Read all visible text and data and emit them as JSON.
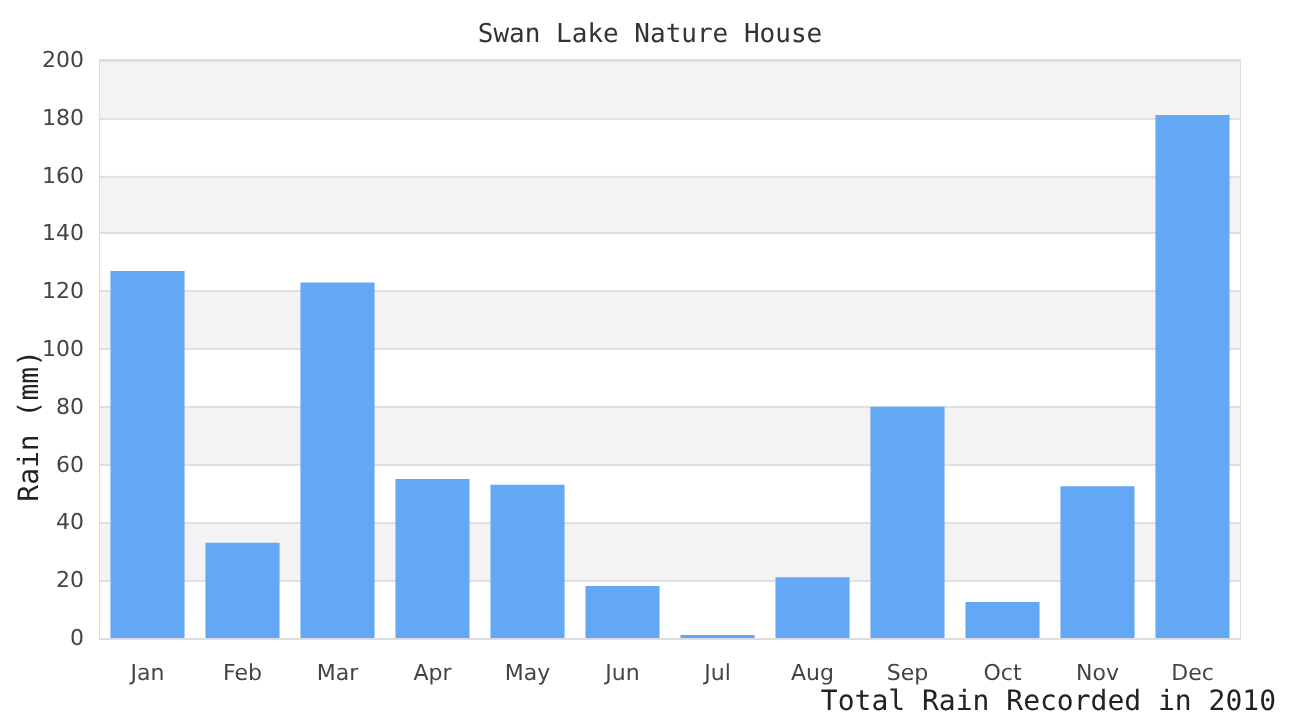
{
  "chart_data": {
    "type": "bar",
    "title": "Swan Lake Nature House",
    "xlabel": "Total Rain Recorded in 2010",
    "ylabel": "Rain (mm)",
    "categories": [
      "Jan",
      "Feb",
      "Mar",
      "Apr",
      "May",
      "Jun",
      "Jul",
      "Aug",
      "Sep",
      "Oct",
      "Nov",
      "Dec"
    ],
    "values": [
      127,
      33,
      123,
      55,
      53,
      18,
      1,
      21,
      80,
      12.5,
      52.5,
      181
    ],
    "color": "#62a8f4",
    "ylim": [
      0,
      200
    ],
    "yticks": [
      0,
      20,
      40,
      60,
      80,
      100,
      120,
      140,
      160,
      180,
      200
    ],
    "grid": "y"
  }
}
